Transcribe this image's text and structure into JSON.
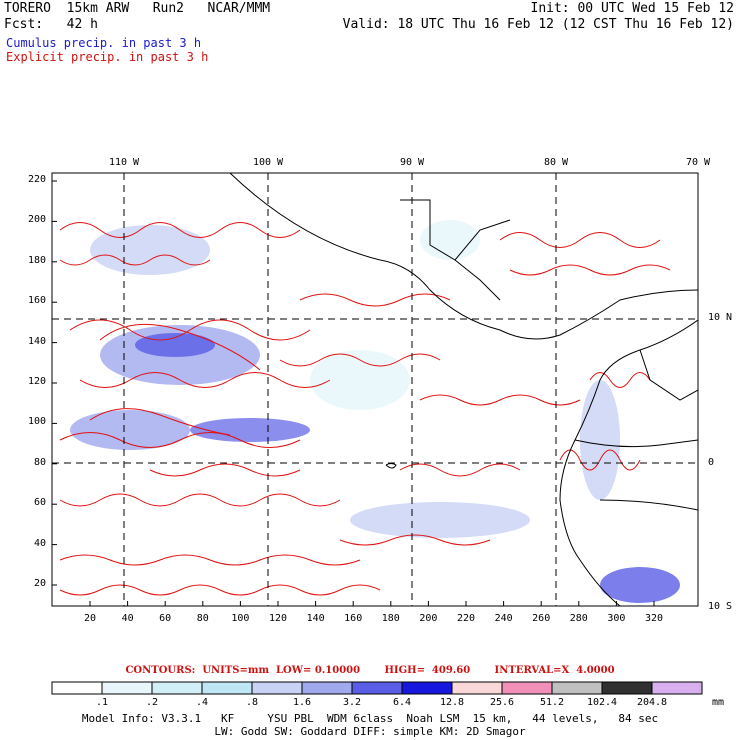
{
  "header": {
    "model": "TORERO  15km ARW   Run2   NCAR/MMM",
    "init": "Init: 00 UTC Wed 15 Feb 12",
    "fcst": "Fcst:   42 h",
    "valid": "Valid: 18 UTC Thu 16 Feb 12 (12 CST Thu 16 Feb 12)"
  },
  "fields": {
    "cumulus": "Cumulus precip. in past 3 h",
    "explicit": "Explicit precip. in past 3 h"
  },
  "map": {
    "lon_labels": [
      "110 W",
      "100 W",
      "90 W",
      "80 W",
      "70 W"
    ],
    "lat_labels": [
      "10 N",
      "0",
      "10 S"
    ],
    "y_ticks": [
      "220",
      "200",
      "180",
      "160",
      "140",
      "120",
      "100",
      "80",
      "60",
      "40",
      "20"
    ],
    "x_ticks": [
      "20",
      "40",
      "60",
      "80",
      "100",
      "120",
      "140",
      "160",
      "180",
      "200",
      "220",
      "240",
      "260",
      "280",
      "300",
      "320"
    ]
  },
  "contours": {
    "text": "CONTOURS:  UNITS=mm  LOW= 0.10000       HIGH=  409.60       INTERVAL=X  4.0000"
  },
  "scale": {
    "unit": "mm",
    "labels": [
      ".1",
      ".2",
      ".4",
      ".8",
      "1.6",
      "3.2",
      "6.4",
      "12.8",
      "25.6",
      "51.2",
      "102.4",
      "204.8"
    ],
    "colors": [
      "#ffffff",
      "#e8f6fb",
      "#d2eef6",
      "#bfe6f4",
      "#c8d2f4",
      "#a0a8ee",
      "#5a5ee6",
      "#1616dc",
      "#f8d8d8",
      "#f090b8",
      "#c0c0c0",
      "#303030",
      "#d8b0f0"
    ]
  },
  "model_info": {
    "line1": "Model Info: V3.3.1   KF     YSU PBL  WDM 6class  Noah LSM  15 km,   44 levels,   84 sec",
    "line2": "LW: Godd SW: Goddard DIFF: simple KM: 2D Smagor"
  }
}
